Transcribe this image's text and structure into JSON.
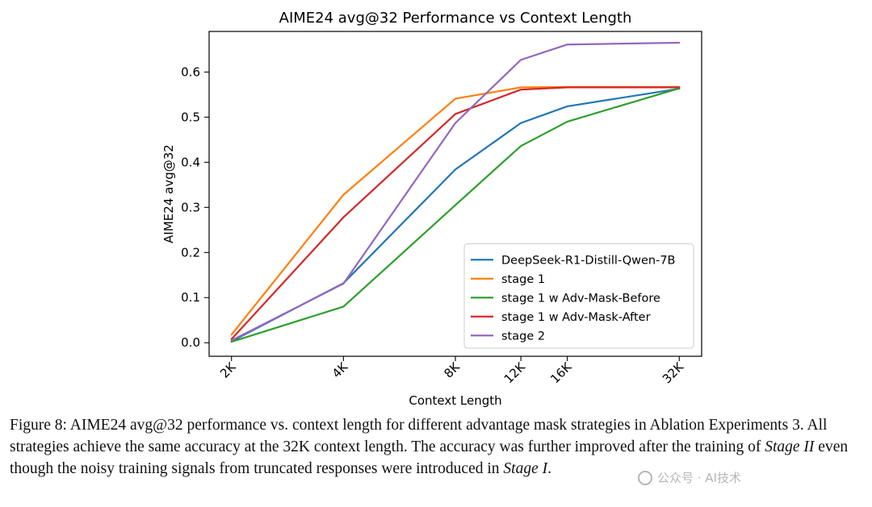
{
  "chart_data": {
    "type": "line",
    "title": "AIME24 avg@32 Performance vs Context Length",
    "xlabel": "Context Length",
    "ylabel": "AIME24 avg@32",
    "categories": [
      "2K",
      "4K",
      "8K",
      "12K",
      "16K",
      "32K"
    ],
    "x": [
      2,
      4,
      8,
      12,
      16,
      32
    ],
    "x_scale": "log2",
    "ylim": [
      -0.03,
      0.69
    ],
    "yticks": [
      0.0,
      0.1,
      0.2,
      0.3,
      0.4,
      0.5,
      0.6
    ],
    "grid": false,
    "legend_position": "lower-right",
    "series": [
      {
        "name": "DeepSeek-R1-Distill-Qwen-7B",
        "color": "#1f77b4",
        "values": [
          0.003,
          0.132,
          0.384,
          0.487,
          0.524,
          0.563
        ]
      },
      {
        "name": "stage 1",
        "color": "#ff7f0e",
        "values": [
          0.018,
          0.328,
          0.541,
          0.566,
          0.567,
          0.567
        ]
      },
      {
        "name": "stage 1 w Adv-Mask-Before",
        "color": "#2ca02c",
        "values": [
          0.002,
          0.08,
          0.305,
          0.436,
          0.49,
          0.564
        ]
      },
      {
        "name": "stage 1 w Adv-Mask-After",
        "color": "#d62728",
        "values": [
          0.008,
          0.278,
          0.507,
          0.561,
          0.566,
          0.566
        ]
      },
      {
        "name": "stage 2",
        "color": "#9467bd",
        "values": [
          0.005,
          0.131,
          0.487,
          0.627,
          0.661,
          0.665
        ]
      }
    ]
  },
  "caption": {
    "figure_label": "Figure 8:",
    "text_1": " AIME24 avg@32 performance vs. context length for different advantage mask strategies in Ablation Experiments 3. All strategies achieve the same accuracy at the 32K context length. The accuracy was further improved after the training of ",
    "stage_2": "Stage II",
    "text_2": " even though the noisy training signals from truncated responses were introduced in ",
    "stage_1": "Stage I",
    "text_3": "."
  },
  "watermark": {
    "text": "公众号 · AI技术"
  }
}
